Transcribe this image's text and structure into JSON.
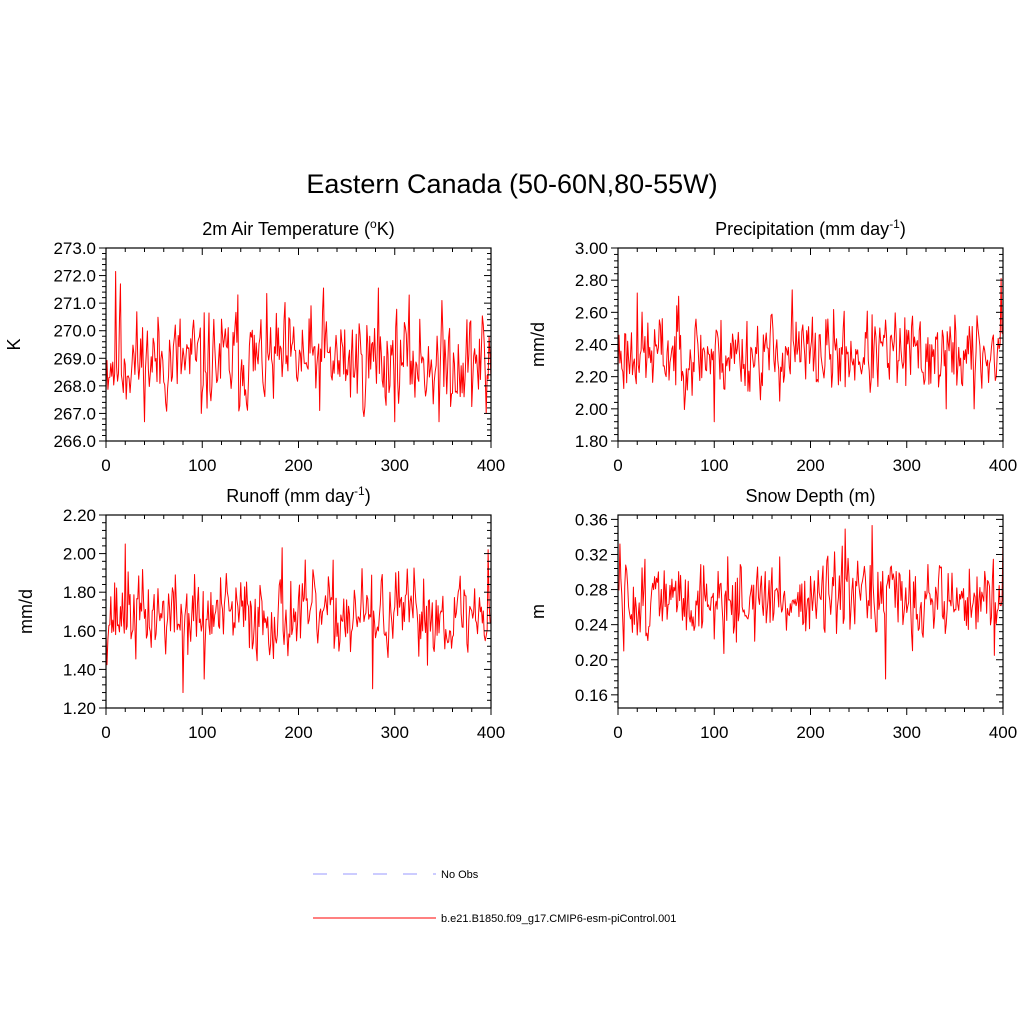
{
  "title": "Eastern Canada (50-60N,80-55W)",
  "legend": [
    {
      "label": "No Obs",
      "color": "#9999ff",
      "style": "dashed"
    },
    {
      "label": "b.e21.B1850.f09_g17.CMIP6-esm-piControl.001",
      "color": "#ff0000",
      "style": "solid"
    }
  ],
  "chart_data": [
    {
      "type": "line",
      "title_main": "2m Air Temperature (",
      "title_sup_pre": "o",
      "title_rest": "K)",
      "ylabel": "K",
      "xlim": [
        0,
        400
      ],
      "ylim": [
        266.0,
        273.0
      ],
      "xticks": [
        0,
        100,
        200,
        300,
        400
      ],
      "yticks": [
        "266.0",
        "267.0",
        "268.0",
        "269.0",
        "270.0",
        "271.0",
        "272.0",
        "273.0"
      ],
      "color": "#ff0000",
      "base": 268.9,
      "amp": 1.0,
      "min": 266.7,
      "max": 272.2,
      "seed": 11,
      "spikes": [
        [
          10,
          272.15
        ],
        [
          15,
          271.7
        ],
        [
          137,
          271.3
        ],
        [
          226,
          271.55
        ],
        [
          283,
          271.55
        ],
        [
          346,
          266.7
        ],
        [
          99,
          267.0
        ],
        [
          395,
          267.0
        ]
      ]
    },
    {
      "type": "line",
      "title_main": "Precipitation (mm day",
      "title_sup_post": "-1",
      "title_rest": ")",
      "ylabel": "mm/d",
      "xlim": [
        0,
        400
      ],
      "ylim": [
        1.8,
        3.0
      ],
      "xticks": [
        0,
        100,
        200,
        300,
        400
      ],
      "yticks": [
        "1.80",
        "2.00",
        "2.20",
        "2.40",
        "2.60",
        "2.80",
        "3.00"
      ],
      "color": "#ff0000",
      "base": 2.34,
      "amp": 0.14,
      "min": 1.92,
      "max": 2.82,
      "seed": 23,
      "spikes": [
        [
          20,
          2.72
        ],
        [
          63,
          2.7
        ],
        [
          100,
          1.92
        ],
        [
          181,
          2.74
        ],
        [
          398,
          2.81
        ],
        [
          341,
          2.0
        ],
        [
          370,
          2.0
        ]
      ]
    },
    {
      "type": "line",
      "title_main": "Runoff (mm day",
      "title_sup_post": "-1",
      "title_rest": ")",
      "ylabel": "mm/d",
      "xlim": [
        0,
        400
      ],
      "ylim": [
        1.2,
        2.2
      ],
      "xticks": [
        0,
        100,
        200,
        300,
        400
      ],
      "yticks": [
        "1.20",
        "1.40",
        "1.60",
        "1.80",
        "2.00",
        "2.20"
      ],
      "color": "#ff0000",
      "base": 1.68,
      "amp": 0.12,
      "min": 1.28,
      "max": 2.05,
      "seed": 37,
      "spikes": [
        [
          20,
          2.05
        ],
        [
          80,
          1.28
        ],
        [
          183,
          2.03
        ],
        [
          277,
          1.3
        ],
        [
          397,
          2.02
        ],
        [
          102,
          1.35
        ]
      ]
    },
    {
      "type": "line",
      "title_main": "Snow Depth (m)",
      "ylabel": "m",
      "xlim": [
        0,
        400
      ],
      "ylim": [
        0.145,
        0.365
      ],
      "xticks": [
        0,
        100,
        200,
        300,
        400
      ],
      "yticks": [
        "0.16",
        "0.20",
        "0.24",
        "0.28",
        "0.32",
        "0.36"
      ],
      "ytick_values": [
        0.16,
        0.2,
        0.24,
        0.28,
        0.32,
        0.36
      ],
      "color": "#ff0000",
      "base": 0.268,
      "amp": 0.025,
      "min": 0.178,
      "max": 0.353,
      "seed": 51,
      "spikes": [
        [
          2,
          0.332
        ],
        [
          6,
          0.21
        ],
        [
          264,
          0.353
        ],
        [
          278,
          0.178
        ],
        [
          400,
          0.34
        ],
        [
          391,
          0.205
        ],
        [
          236,
          0.349
        ]
      ]
    }
  ]
}
